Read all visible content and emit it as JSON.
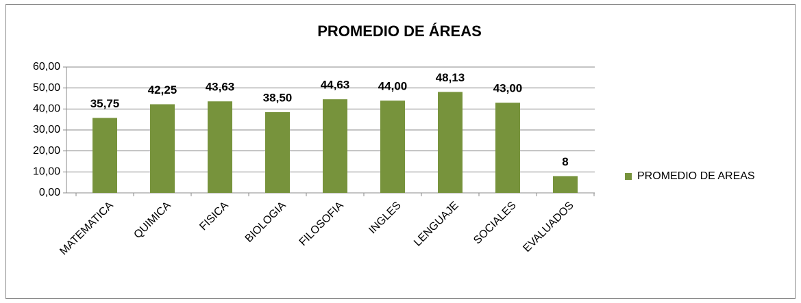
{
  "chart_data": {
    "type": "bar",
    "title": "PROMEDIO DE ÁREAS",
    "categories": [
      "MATEMATICA",
      "QUIMICA",
      "FISICA",
      "BIOLOGIA",
      "FILOSOFIA",
      "INGLES",
      "LENGUAJE",
      "SOCIALES",
      "EVALUADOS"
    ],
    "series": [
      {
        "name": "PROMEDIO DE AREAS",
        "color": "#77933c",
        "values": [
          35.75,
          42.25,
          43.63,
          38.5,
          44.63,
          44,
          48.13,
          43,
          8
        ],
        "value_labels": [
          "35,75",
          "42,25",
          "43,63",
          "38,50",
          "44,63",
          "44,00",
          "48,13",
          "43,00",
          "8"
        ]
      }
    ],
    "ylim": [
      0,
      60
    ],
    "yticks": [
      {
        "value": 0,
        "label": "0,00"
      },
      {
        "value": 10,
        "label": "10,00"
      },
      {
        "value": 20,
        "label": "20,00"
      },
      {
        "value": 30,
        "label": "30,00"
      },
      {
        "value": 40,
        "label": "40,00"
      },
      {
        "value": 50,
        "label": "50,00"
      },
      {
        "value": 60,
        "label": "60,00"
      }
    ],
    "grid": true,
    "legend": "right"
  }
}
